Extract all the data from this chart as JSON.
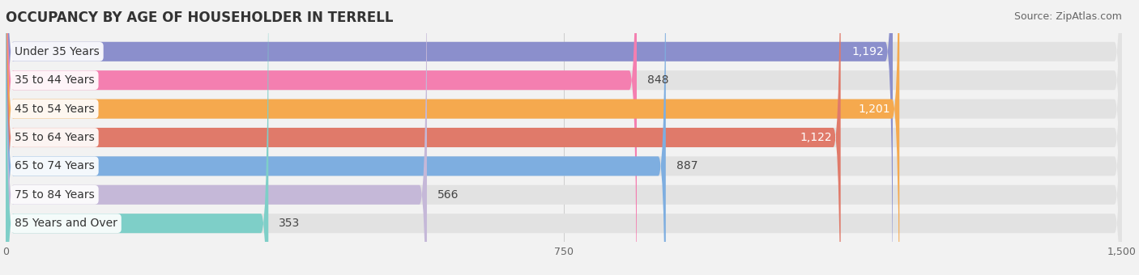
{
  "title": "OCCUPANCY BY AGE OF HOUSEHOLDER IN TERRELL",
  "source": "Source: ZipAtlas.com",
  "categories": [
    "Under 35 Years",
    "35 to 44 Years",
    "45 to 54 Years",
    "55 to 64 Years",
    "65 to 74 Years",
    "75 to 84 Years",
    "85 Years and Over"
  ],
  "values": [
    1192,
    848,
    1201,
    1122,
    887,
    566,
    353
  ],
  "bar_colors": [
    "#8b8fcc",
    "#f47fb0",
    "#f5a94e",
    "#e07a6a",
    "#7eaee0",
    "#c5b8d8",
    "#7ecfc8"
  ],
  "value_inside": [
    true,
    false,
    true,
    true,
    false,
    false,
    false
  ],
  "xlim": [
    0,
    1500
  ],
  "xticks": [
    0,
    750,
    1500
  ],
  "background_color": "#f2f2f2",
  "bar_background_color": "#e2e2e2",
  "row_gap_color": "#f2f2f2",
  "title_fontsize": 12,
  "source_fontsize": 9,
  "label_fontsize": 10,
  "category_fontsize": 10
}
